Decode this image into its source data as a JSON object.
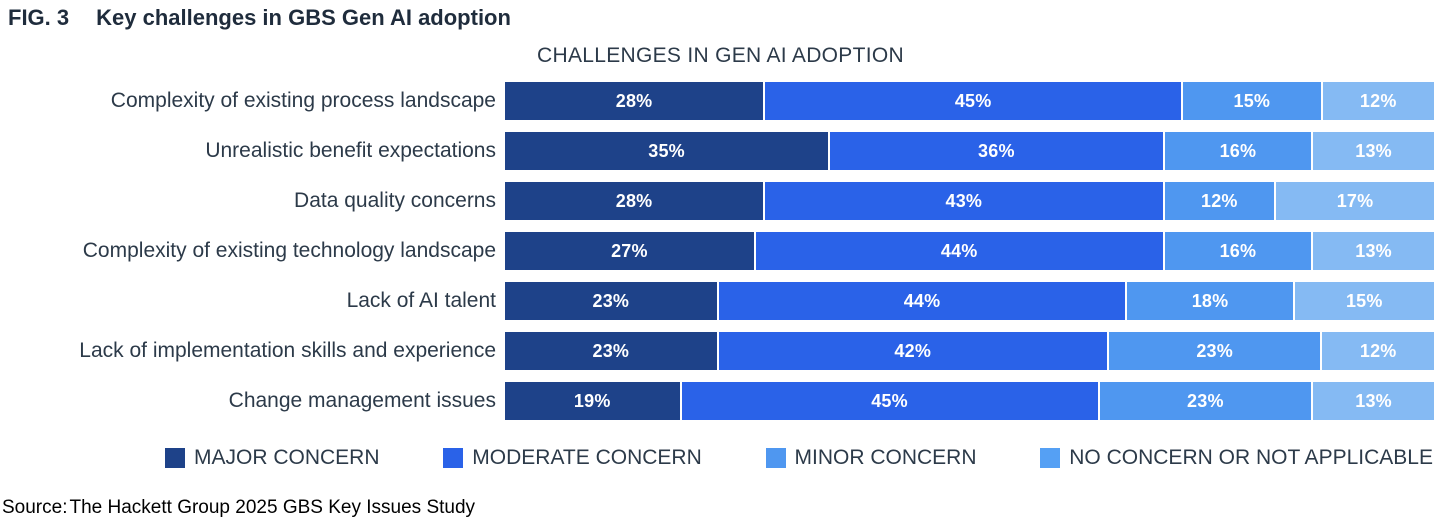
{
  "figure": {
    "fig_label": "FIG. 3",
    "fig_title": "Key challenges in GBS Gen AI adoption"
  },
  "chart_data": {
    "type": "bar",
    "variant": "horizontal-stacked",
    "title": "CHALLENGES IN GEN AI ADOPTION",
    "value_suffix": "%",
    "xlim": [
      0,
      100
    ],
    "grid": false,
    "legend_position": "bottom",
    "value_labels": "inside, white, bold",
    "categories": [
      "Complexity of existing process landscape",
      "Unrealistic benefit expectations",
      "Data quality concerns",
      "Complexity of existing technology landscape",
      "Lack of AI talent",
      "Lack of implementation skills and experience",
      "Change management issues"
    ],
    "series": [
      {
        "key": "major",
        "name": "MAJOR CONCERN",
        "color": "#1E4289",
        "swatch_color": "#1E4289",
        "values": [
          28,
          35,
          28,
          27,
          23,
          23,
          19
        ]
      },
      {
        "key": "moderate",
        "name": "MODERATE CONCERN",
        "color": "#2A62E8",
        "swatch_color": "#2A62E8",
        "values": [
          45,
          36,
          43,
          44,
          44,
          42,
          45
        ]
      },
      {
        "key": "minor",
        "name": "MINOR CONCERN",
        "color": "#4F97F0",
        "swatch_color": "#4F97F0",
        "values": [
          15,
          16,
          12,
          16,
          18,
          23,
          23
        ]
      },
      {
        "key": "none",
        "name": "NO CONCERN OR NOT APPLICABLE",
        "color": "#85BAF3",
        "swatch_color": "#55A0F4",
        "values": [
          12,
          13,
          17,
          13,
          15,
          12,
          13
        ]
      }
    ]
  },
  "source": {
    "label": "Source:",
    "text": "The Hackett Group 2025 GBS Key Issues Study"
  }
}
